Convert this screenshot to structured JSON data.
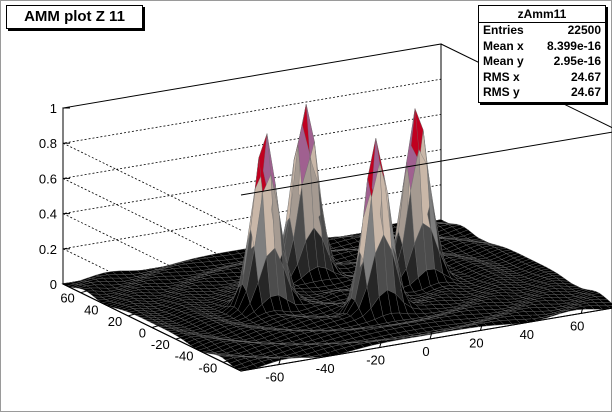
{
  "chart_data": {
    "type": "surface3d",
    "title": "AMM plot Z 11",
    "histogram_name": "zAmm11",
    "stats": [
      {
        "label": "Entries",
        "value": "22500"
      },
      {
        "label": "Mean x",
        "value": "8.399e-16"
      },
      {
        "label": "Mean y",
        "value": "2.95e-16"
      },
      {
        "label": "RMS x",
        "value": "24.67"
      },
      {
        "label": "RMS y",
        "value": "24.67"
      }
    ],
    "x_ticks": [
      "-60",
      "-40",
      "-20",
      "0",
      "20",
      "40",
      "60"
    ],
    "y_ticks": [
      "60",
      "40",
      "20",
      "0",
      "-20",
      "-40",
      "-60"
    ],
    "z_ticks": [
      "0",
      "0.2",
      "0.4",
      "0.6",
      "0.8",
      "1"
    ],
    "xlim": [
      -75,
      75
    ],
    "ylim": [
      -75,
      75
    ],
    "zlim": [
      0,
      1
    ],
    "grid": true,
    "peaks": [
      {
        "x": 0,
        "y": 30,
        "z": 1.0
      },
      {
        "x": 0,
        "y": -30,
        "z": 1.0
      },
      {
        "x": 30,
        "y": 0,
        "z": 1.0
      },
      {
        "x": -30,
        "y": 0,
        "z": 1.0
      }
    ]
  }
}
